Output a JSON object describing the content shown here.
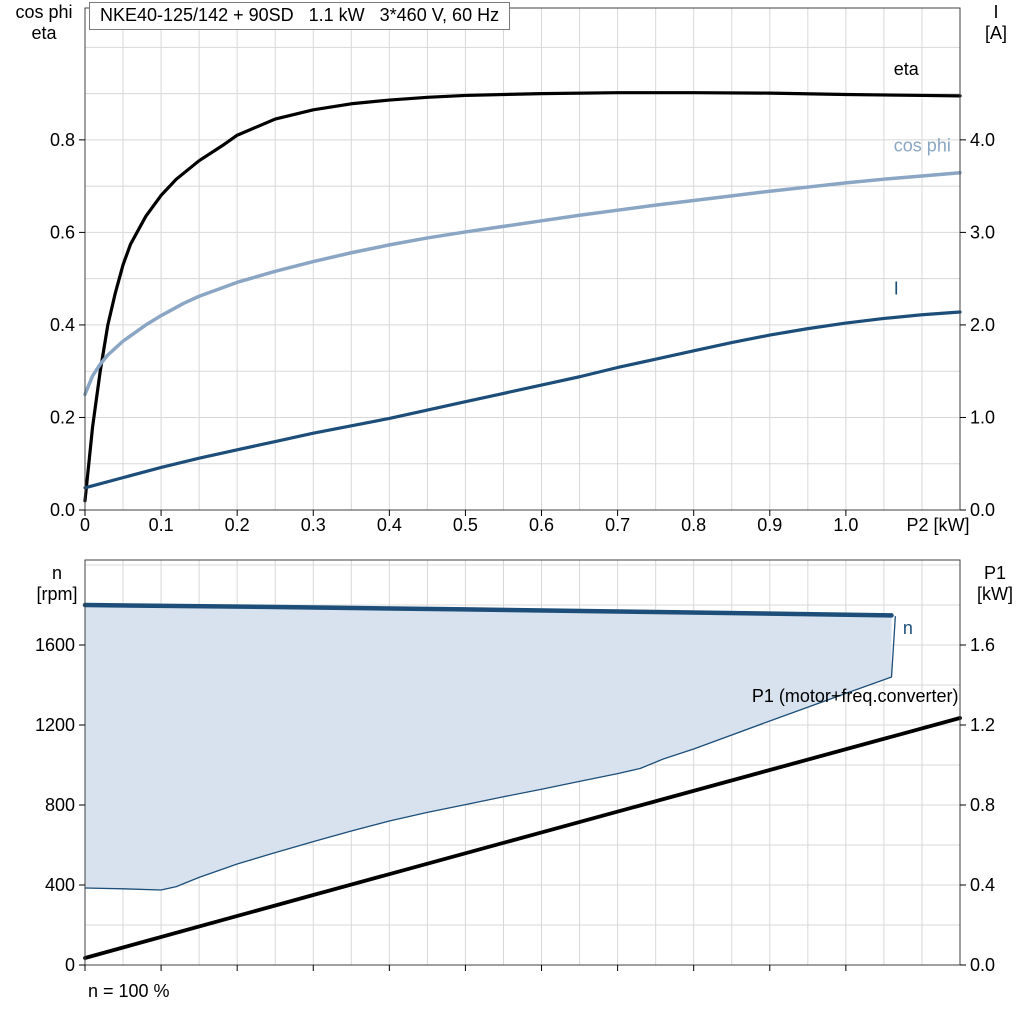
{
  "title": "NKE40-125/142 + 90SD   1.1 kW   3*460 V, 60 Hz",
  "note": "n = 100 %",
  "labels": {
    "top_left_axis": "cos phi\neta",
    "top_right_axis": "I\n[A]",
    "bottom_left_axis": "n\n[rpm]",
    "bottom_right_axis": "P1\n[kW]"
  },
  "colors": {
    "black": "#000000",
    "dark_blue": "#1c4e79",
    "light_blue": "#8ba6c4",
    "band_fill": "#d8e2ee",
    "grid": "#d8d8d8",
    "frame": "#404040"
  },
  "chart_data": [
    {
      "type": "line",
      "title": "NKE40-125/142 + 90SD   1.1 kW   3*460 V, 60 Hz",
      "x_axis": {
        "label": "P2 [kW]",
        "min": 0,
        "max": 1.15,
        "grid_step": 0.05,
        "ticks": [
          0,
          0.1,
          0.2,
          0.3,
          0.4,
          0.5,
          0.6,
          0.7,
          0.8,
          0.9,
          1.0
        ],
        "tick_labels": [
          "0",
          "0.1",
          "0.2",
          "0.3",
          "0.4",
          "0.5",
          "0.6",
          "0.7",
          "0.8",
          "0.9",
          "1.0"
        ]
      },
      "y_left": {
        "label": "cos phi / eta",
        "min": 0,
        "max": 1.085,
        "grid_step": 0.1,
        "ticks": [
          0,
          0.2,
          0.4,
          0.6,
          0.8
        ],
        "tick_labels": [
          "0.0",
          "0.2",
          "0.4",
          "0.6",
          "0.8"
        ]
      },
      "y_right": {
        "label": "I [A]",
        "min": 0,
        "max": 5.425,
        "ticks": [
          0,
          1,
          2,
          3,
          4
        ],
        "tick_labels": [
          "0.0",
          "1.0",
          "2.0",
          "3.0",
          "4.0"
        ]
      },
      "series": [
        {
          "name": "eta",
          "label": "eta",
          "axis": "left",
          "color": "#000000",
          "width": 3.2,
          "label_x": 1.063,
          "label_y": 0.94,
          "label_anchor": "start",
          "points": [
            [
              0,
              0.02
            ],
            [
              0.005,
              0.1
            ],
            [
              0.01,
              0.18
            ],
            [
              0.02,
              0.3
            ],
            [
              0.03,
              0.4
            ],
            [
              0.04,
              0.47
            ],
            [
              0.05,
              0.53
            ],
            [
              0.06,
              0.575
            ],
            [
              0.08,
              0.635
            ],
            [
              0.1,
              0.68
            ],
            [
              0.12,
              0.715
            ],
            [
              0.15,
              0.755
            ],
            [
              0.18,
              0.787
            ],
            [
              0.2,
              0.81
            ],
            [
              0.25,
              0.845
            ],
            [
              0.3,
              0.865
            ],
            [
              0.35,
              0.878
            ],
            [
              0.4,
              0.886
            ],
            [
              0.45,
              0.892
            ],
            [
              0.5,
              0.896
            ],
            [
              0.6,
              0.9
            ],
            [
              0.7,
              0.902
            ],
            [
              0.8,
              0.902
            ],
            [
              0.9,
              0.901
            ],
            [
              1.0,
              0.898
            ],
            [
              1.1,
              0.896
            ],
            [
              1.15,
              0.895
            ]
          ]
        },
        {
          "name": "cos-phi",
          "label": "cos phi",
          "axis": "left",
          "color": "#8ba6c4",
          "width": 3.5,
          "label_x": 1.063,
          "label_y": 0.775,
          "label_anchor": "start",
          "points": [
            [
              0,
              0.25
            ],
            [
              0.01,
              0.29
            ],
            [
              0.02,
              0.315
            ],
            [
              0.03,
              0.335
            ],
            [
              0.05,
              0.365
            ],
            [
              0.08,
              0.4
            ],
            [
              0.1,
              0.42
            ],
            [
              0.13,
              0.447
            ],
            [
              0.15,
              0.462
            ],
            [
              0.2,
              0.492
            ],
            [
              0.25,
              0.516
            ],
            [
              0.3,
              0.537
            ],
            [
              0.35,
              0.556
            ],
            [
              0.4,
              0.573
            ],
            [
              0.45,
              0.588
            ],
            [
              0.5,
              0.601
            ],
            [
              0.55,
              0.613
            ],
            [
              0.6,
              0.625
            ],
            [
              0.65,
              0.637
            ],
            [
              0.7,
              0.648
            ],
            [
              0.75,
              0.659
            ],
            [
              0.8,
              0.669
            ],
            [
              0.85,
              0.679
            ],
            [
              0.9,
              0.689
            ],
            [
              0.95,
              0.698
            ],
            [
              1.0,
              0.707
            ],
            [
              1.05,
              0.715
            ],
            [
              1.1,
              0.722
            ],
            [
              1.15,
              0.729
            ]
          ]
        },
        {
          "name": "current",
          "label": "I",
          "axis": "right",
          "color": "#1c4e79",
          "width": 3.2,
          "label_x": 1.063,
          "label_y": 2.33,
          "label_anchor": "start",
          "points": [
            [
              0,
              0.24
            ],
            [
              0.05,
              0.35
            ],
            [
              0.1,
              0.46
            ],
            [
              0.15,
              0.56
            ],
            [
              0.2,
              0.65
            ],
            [
              0.25,
              0.74
            ],
            [
              0.3,
              0.83
            ],
            [
              0.35,
              0.91
            ],
            [
              0.4,
              0.99
            ],
            [
              0.45,
              1.08
            ],
            [
              0.5,
              1.17
            ],
            [
              0.55,
              1.26
            ],
            [
              0.6,
              1.35
            ],
            [
              0.65,
              1.44
            ],
            [
              0.7,
              1.54
            ],
            [
              0.75,
              1.63
            ],
            [
              0.8,
              1.72
            ],
            [
              0.85,
              1.81
            ],
            [
              0.9,
              1.89
            ],
            [
              0.95,
              1.96
            ],
            [
              1.0,
              2.02
            ],
            [
              1.05,
              2.07
            ],
            [
              1.1,
              2.11
            ],
            [
              1.15,
              2.14
            ]
          ]
        }
      ]
    },
    {
      "type": "line",
      "title": "",
      "x_axis": {
        "label": "",
        "min": 0,
        "max": 1.15,
        "grid_step": 0.05,
        "ticks": [
          0,
          0.1,
          0.2,
          0.3,
          0.4,
          0.5,
          0.6,
          0.7,
          0.8,
          0.9,
          1.0
        ]
      },
      "y_left": {
        "label": "n [rpm]",
        "min": 0,
        "max": 2025,
        "grid_step": 200,
        "ticks": [
          0,
          400,
          800,
          1200,
          1600
        ],
        "tick_labels": [
          "0",
          "400",
          "800",
          "1200",
          "1600"
        ]
      },
      "y_right": {
        "label": "P1 [kW]",
        "min": 0,
        "max": 2.025,
        "ticks": [
          0,
          0.4,
          0.8,
          1.2,
          1.6
        ],
        "tick_labels": [
          "0.0",
          "0.4",
          "0.8",
          "1.2",
          "1.6"
        ]
      },
      "series": [
        {
          "name": "speed-band",
          "type": "band",
          "axis": "left",
          "fill": "#d8e2ee",
          "upper": [
            [
              0,
              1800
            ],
            [
              0.25,
              1790
            ],
            [
              0.5,
              1778
            ],
            [
              0.75,
              1765
            ],
            [
              1.06,
              1748
            ]
          ],
          "lower": [
            [
              0,
              385
            ],
            [
              0.05,
              381
            ],
            [
              0.1,
              375
            ],
            [
              0.12,
              392
            ],
            [
              0.15,
              438
            ],
            [
              0.18,
              478
            ],
            [
              0.2,
              505
            ],
            [
              0.25,
              562
            ],
            [
              0.3,
              617
            ],
            [
              0.35,
              670
            ],
            [
              0.4,
              720
            ],
            [
              0.45,
              763
            ],
            [
              0.5,
              802
            ],
            [
              0.55,
              841
            ],
            [
              0.6,
              879
            ],
            [
              0.65,
              918
            ],
            [
              0.7,
              957
            ],
            [
              0.73,
              983
            ],
            [
              0.76,
              1030
            ],
            [
              0.8,
              1080
            ],
            [
              0.9,
              1220
            ],
            [
              1.0,
              1358
            ],
            [
              1.06,
              1440
            ]
          ]
        },
        {
          "name": "speed-min-boundary",
          "axis": "left",
          "color": "#1c4e79",
          "width": 1.3,
          "points": [
            [
              0,
              385
            ],
            [
              0.05,
              381
            ],
            [
              0.1,
              375
            ],
            [
              0.12,
              392
            ],
            [
              0.15,
              438
            ],
            [
              0.18,
              478
            ],
            [
              0.2,
              505
            ],
            [
              0.25,
              562
            ],
            [
              0.3,
              617
            ],
            [
              0.35,
              670
            ],
            [
              0.4,
              720
            ],
            [
              0.45,
              763
            ],
            [
              0.5,
              802
            ],
            [
              0.55,
              841
            ],
            [
              0.6,
              879
            ],
            [
              0.65,
              918
            ],
            [
              0.7,
              957
            ],
            [
              0.73,
              983
            ],
            [
              0.76,
              1030
            ],
            [
              0.8,
              1080
            ],
            [
              0.9,
              1220
            ],
            [
              1.0,
              1358
            ],
            [
              1.06,
              1440
            ],
            [
              1.065,
              1742
            ]
          ]
        },
        {
          "name": "speed",
          "label": "n",
          "axis": "left",
          "color": "#1c4e79",
          "width": 4.5,
          "label_x": 1.075,
          "label_y": 1655,
          "label_anchor": "start",
          "label_color": "#1c4e79",
          "points": [
            [
              0,
              1800
            ],
            [
              0.25,
              1790
            ],
            [
              0.5,
              1778
            ],
            [
              0.75,
              1765
            ],
            [
              1.06,
              1748
            ]
          ]
        },
        {
          "name": "p1-input-power",
          "label": "P1 (motor+freq.converter)",
          "axis": "right",
          "color": "#000000",
          "width": 3.8,
          "label_x": 1.148,
          "label_y": 1.315,
          "label_anchor": "end",
          "label_color": "#000000",
          "points": [
            [
              0,
              0.035
            ],
            [
              0.3,
              0.35
            ],
            [
              0.6,
              0.663
            ],
            [
              0.9,
              0.975
            ],
            [
              1.15,
              1.235
            ]
          ]
        }
      ]
    }
  ]
}
